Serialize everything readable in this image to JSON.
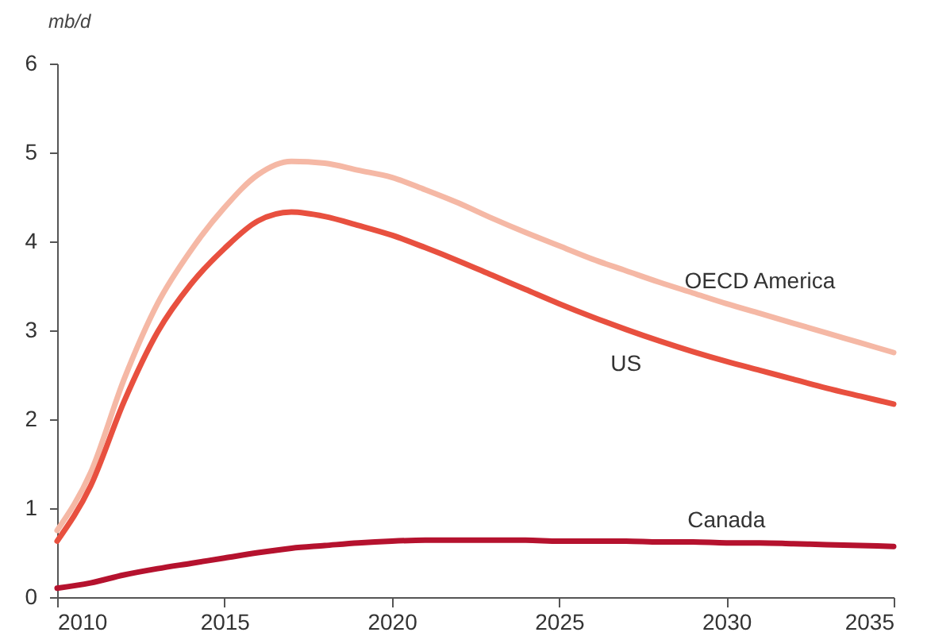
{
  "chart_data": {
    "type": "line",
    "ylabel": "mb/d",
    "x": [
      2010,
      2011,
      2012,
      2013,
      2014,
      2015,
      2016,
      2017,
      2018,
      2019,
      2020,
      2021,
      2022,
      2023,
      2024,
      2025,
      2026,
      2027,
      2028,
      2029,
      2030,
      2031,
      2032,
      2033,
      2034,
      2035
    ],
    "series": [
      {
        "name": "OECD America",
        "color": "#f5b8a5",
        "values": [
          0.75,
          1.4,
          2.45,
          3.3,
          3.9,
          4.38,
          4.75,
          4.9,
          4.88,
          4.8,
          4.72,
          4.58,
          4.43,
          4.26,
          4.1,
          3.95,
          3.8,
          3.67,
          3.54,
          3.42,
          3.3,
          3.19,
          3.08,
          2.97,
          2.86,
          2.75
        ]
      },
      {
        "name": "US",
        "color": "#e8503f",
        "values": [
          0.63,
          1.25,
          2.2,
          2.98,
          3.52,
          3.92,
          4.23,
          4.33,
          4.28,
          4.18,
          4.07,
          3.93,
          3.78,
          3.62,
          3.46,
          3.3,
          3.15,
          3.01,
          2.88,
          2.76,
          2.65,
          2.55,
          2.45,
          2.35,
          2.26,
          2.17
        ]
      },
      {
        "name": "Canada",
        "color": "#b5122e",
        "values": [
          0.1,
          0.16,
          0.25,
          0.32,
          0.38,
          0.44,
          0.5,
          0.55,
          0.58,
          0.61,
          0.63,
          0.64,
          0.64,
          0.64,
          0.64,
          0.63,
          0.63,
          0.63,
          0.62,
          0.62,
          0.61,
          0.61,
          0.6,
          0.59,
          0.58,
          0.57
        ]
      }
    ],
    "xlim": [
      2010,
      2035
    ],
    "xticks": [
      2010,
      2015,
      2020,
      2025,
      2030,
      2035
    ],
    "ylim": [
      0,
      6
    ],
    "yticks": [
      0,
      1,
      2,
      3,
      4,
      5,
      6
    ],
    "grid": false,
    "legend": false
  }
}
